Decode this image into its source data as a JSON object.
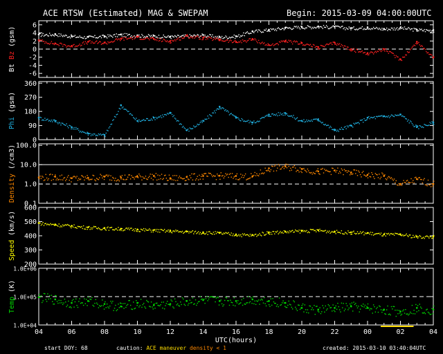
{
  "header": {
    "title": "ACE RTSW (Estimated) MAG & SWEPAM",
    "begin": "Begin: 2015-03-09 04:00:00UTC"
  },
  "footer": {
    "start_doy_label": "start DOY:",
    "start_doy": "68",
    "caution_label": "caution:",
    "caution_maneuver": "ACE maneuver",
    "caution_density": "density < 1",
    "created": "created: 2015-03-10 03:40:04UTC"
  },
  "colors": {
    "bt": "#ffffff",
    "bz": "#ff2020",
    "phi": "#20b0e0",
    "density": "#ff8800",
    "speed": "#ffff00",
    "temp": "#00dd00",
    "maneuver": "#ffdd00",
    "density_low": "#ff8800"
  },
  "chart_data": {
    "type": "scatter",
    "xlabel": "UTC(hours)",
    "x_ticks": [
      "04",
      "06",
      "08",
      "10",
      "12",
      "14",
      "16",
      "18",
      "20",
      "22",
      "00",
      "02",
      "04"
    ],
    "x_range_hours": [
      0,
      24
    ],
    "panels": [
      {
        "id": "magnetic",
        "ylabel_parts": [
          {
            "text": "Bt",
            "color": "#ffffff"
          },
          {
            "text": "Bz",
            "color": "#ff2020"
          },
          {
            "text": "(gsm)",
            "color": "#ffffff"
          }
        ],
        "ylim": [
          -7,
          7
        ],
        "y_ticks": [
          6,
          4,
          2,
          0,
          -2,
          -4,
          -6
        ],
        "y_tick_labels": [
          "6",
          "4",
          "2",
          "0",
          "-2",
          "-4",
          "-6"
        ],
        "scale": "linear",
        "ref_lines": [
          0
        ],
        "series": [
          {
            "name": "Bt",
            "color": "#ffffff",
            "x": [
              0,
              1,
              2,
              3,
              4,
              5,
              6,
              7,
              8,
              9,
              10,
              11,
              12,
              13,
              14,
              15,
              16,
              17,
              18,
              19,
              20,
              21,
              22,
              23,
              24
            ],
            "y": [
              3.6,
              3.7,
              3.2,
              3.0,
              3.2,
              3.6,
              3.4,
              3.3,
              3.1,
              3.3,
              3.5,
              3.0,
              3.2,
              4.4,
              4.8,
              5.3,
              5.5,
              5.6,
              5.5,
              5.2,
              5.4,
              5.0,
              5.3,
              4.8,
              4.7
            ]
          },
          {
            "name": "Bz",
            "color": "#ff2020",
            "x": [
              0,
              1,
              2,
              3,
              4,
              5,
              6,
              7,
              8,
              9,
              10,
              11,
              12,
              13,
              14,
              15,
              16,
              17,
              18,
              19,
              20,
              21,
              22,
              23,
              24
            ],
            "y": [
              2.2,
              1.4,
              0.8,
              1.8,
              1.6,
              2.6,
              3.0,
              2.5,
              2.0,
              3.3,
              2.8,
              2.4,
              1.8,
              2.5,
              1.0,
              2.0,
              1.5,
              0.5,
              1.6,
              0.0,
              -1.0,
              0.0,
              -2.5,
              1.8,
              -2.0
            ]
          }
        ]
      },
      {
        "id": "phi",
        "ylabel_parts": [
          {
            "text": "Phi",
            "color": "#20b0e0"
          },
          {
            "text": "(gsm)",
            "color": "#ffffff"
          }
        ],
        "ylim": [
          0,
          370
        ],
        "y_ticks": [
          360,
          270,
          180,
          90,
          0
        ],
        "y_tick_labels": [
          "360",
          "270",
          "180",
          "90",
          "0"
        ],
        "scale": "linear",
        "ref_lines": [],
        "series": [
          {
            "name": "Phi",
            "color": "#20b0e0",
            "x": [
              0,
              1,
              2,
              3,
              4,
              5,
              6,
              7,
              8,
              9,
              10,
              11,
              12,
              13,
              14,
              15,
              16,
              17,
              18,
              19,
              20,
              21,
              22,
              23,
              24
            ],
            "y": [
              140,
              120,
              80,
              40,
              30,
              220,
              120,
              140,
              170,
              60,
              120,
              210,
              140,
              110,
              160,
              170,
              120,
              130,
              60,
              90,
              140,
              150,
              160,
              80,
              110
            ]
          }
        ]
      },
      {
        "id": "density",
        "ylabel_parts": [
          {
            "text": "Density",
            "color": "#ff8800"
          },
          {
            "text": "(/cm3)",
            "color": "#ffffff"
          }
        ],
        "ylim": [
          0.1,
          120
        ],
        "y_ticks": [
          100,
          10,
          1,
          0.1
        ],
        "y_tick_labels": [
          "100.0",
          "10.0",
          "1.0",
          "0.1"
        ],
        "scale": "log",
        "ref_lines": [
          1
        ],
        "series": [
          {
            "name": "Density",
            "color": "#ff8800",
            "x": [
              0,
              1,
              2,
              3,
              4,
              5,
              6,
              7,
              8,
              9,
              10,
              11,
              12,
              13,
              14,
              15,
              16,
              17,
              18,
              19,
              20,
              21,
              22,
              23,
              24
            ],
            "y": [
              2.2,
              2.4,
              2.0,
              2.1,
              2.4,
              2.2,
              2.4,
              2.6,
              2.0,
              2.3,
              2.6,
              2.7,
              2.6,
              2.5,
              6.5,
              8.0,
              6.0,
              4.5,
              5.0,
              4.0,
              3.0,
              2.6,
              1.0,
              1.8,
              1.0
            ]
          }
        ]
      },
      {
        "id": "speed",
        "ylabel_parts": [
          {
            "text": "Speed",
            "color": "#ffff00"
          },
          {
            "text": "(km/s)",
            "color": "#ffffff"
          }
        ],
        "ylim": [
          200,
          600
        ],
        "y_ticks": [
          600,
          500,
          400,
          300,
          200
        ],
        "y_tick_labels": [
          "600",
          "500",
          "400",
          "300",
          "200"
        ],
        "scale": "linear",
        "ref_lines": [],
        "series": [
          {
            "name": "Speed",
            "color": "#ffff00",
            "x": [
              0,
              1,
              2,
              3,
              4,
              5,
              6,
              7,
              8,
              9,
              10,
              11,
              12,
              13,
              14,
              15,
              16,
              17,
              18,
              19,
              20,
              21,
              22,
              23,
              24
            ],
            "y": [
              490,
              480,
              470,
              460,
              455,
              450,
              445,
              440,
              435,
              430,
              425,
              420,
              410,
              405,
              425,
              430,
              435,
              440,
              430,
              425,
              420,
              410,
              410,
              395,
              395
            ]
          }
        ]
      },
      {
        "id": "temp",
        "ylabel_parts": [
          {
            "text": "Temp",
            "color": "#00dd00"
          },
          {
            "text": "(K)",
            "color": "#ffffff"
          }
        ],
        "ylim": [
          10000,
          1000000
        ],
        "y_ticks": [
          1000000,
          100000,
          10000
        ],
        "y_tick_labels": [
          "1.0E+06",
          "1.0E+05",
          "1.0E+04"
        ],
        "scale": "log",
        "ref_lines": [
          100000
        ],
        "series": [
          {
            "name": "Temp",
            "color": "#00dd00",
            "x": [
              0,
              1,
              2,
              3,
              4,
              5,
              6,
              7,
              8,
              9,
              10,
              11,
              12,
              13,
              14,
              15,
              16,
              17,
              18,
              19,
              20,
              21,
              22,
              23,
              24
            ],
            "y": [
              95000,
              80000,
              60000,
              70000,
              55000,
              45000,
              60000,
              50000,
              55000,
              70000,
              75000,
              70000,
              70000,
              80000,
              70000,
              60000,
              40000,
              35000,
              40000,
              45000,
              40000,
              35000,
              30000,
              40000,
              35000
            ]
          }
        ]
      }
    ],
    "maneuver_bar": {
      "x_start": 20.8,
      "x_end": 22.8,
      "color": "#ffdd00"
    }
  }
}
